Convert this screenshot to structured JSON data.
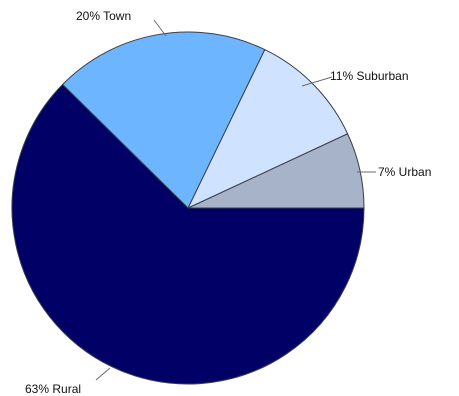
{
  "chart_data": {
    "type": "pie",
    "title": "",
    "slices": [
      {
        "name": "Urban",
        "value": 7,
        "label": "7% Urban",
        "color": "#a7b3c8"
      },
      {
        "name": "Suburban",
        "value": 11,
        "label": "11% Suburban",
        "color": "#cfe2ff"
      },
      {
        "name": "Town",
        "value": 20,
        "label": "20% Town",
        "color": "#6db6ff"
      },
      {
        "name": "Rural",
        "value": 63,
        "label": "63% Rural",
        "color": "#000066"
      }
    ],
    "start_angle_deg": 0,
    "direction": "counterclockwise",
    "legend": "none"
  }
}
